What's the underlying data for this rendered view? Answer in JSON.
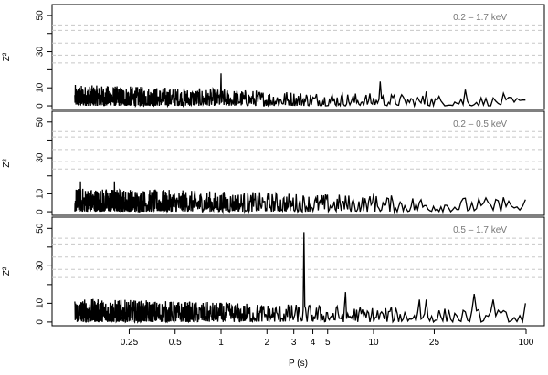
{
  "chart_data": {
    "type": "line",
    "xlabel": "P (s)",
    "x_scale": "log",
    "x_ticks": [
      0.25,
      0.5,
      1,
      2,
      3,
      4,
      5,
      10,
      25,
      100
    ],
    "x_tick_labels": [
      "0.25",
      "0.5",
      "1",
      "2",
      "3",
      "4",
      "5",
      "10",
      "25",
      "100"
    ],
    "xlim": [
      0.1,
      100
    ],
    "ylabel": "Z²",
    "y_ticks": [
      0,
      10,
      30,
      50
    ],
    "y_tick_labels": [
      "0",
      "10",
      "30",
      "50"
    ],
    "ylim": [
      -2,
      56
    ],
    "threshold_lines": [
      23.8,
      28.1,
      34.7,
      41.7,
      44.7
    ],
    "panels": [
      {
        "label": "0.2 – 1.7 keV",
        "peaks": [
          {
            "x": 1.0,
            "y": 18
          },
          {
            "x": 11.0,
            "y": 13.5
          },
          {
            "x": 22.0,
            "y": 8
          },
          {
            "x": 40.0,
            "y": 9
          },
          {
            "x": 70.0,
            "y": 7
          }
        ],
        "max_noise": 6.5,
        "noise_falloff": 0.6
      },
      {
        "label": "0.2 – 0.5 keV",
        "peaks": [
          {
            "x": 0.12,
            "y": 17
          },
          {
            "x": 0.2,
            "y": 17
          },
          {
            "x": 10.0,
            "y": 10
          },
          {
            "x": 70.0,
            "y": 8
          }
        ],
        "max_noise": 7.5,
        "noise_falloff": 0.45
      },
      {
        "label": "0.5 – 1.7 keV",
        "peaks": [
          {
            "x": 3.5,
            "y": 48
          },
          {
            "x": 6.5,
            "y": 16
          },
          {
            "x": 20.0,
            "y": 12
          },
          {
            "x": 22.0,
            "y": 12
          },
          {
            "x": 45.0,
            "y": 15
          },
          {
            "x": 60.0,
            "y": 12
          },
          {
            "x": 100.0,
            "y": 10
          }
        ],
        "max_noise": 7.0,
        "noise_falloff": 0.5
      }
    ]
  }
}
